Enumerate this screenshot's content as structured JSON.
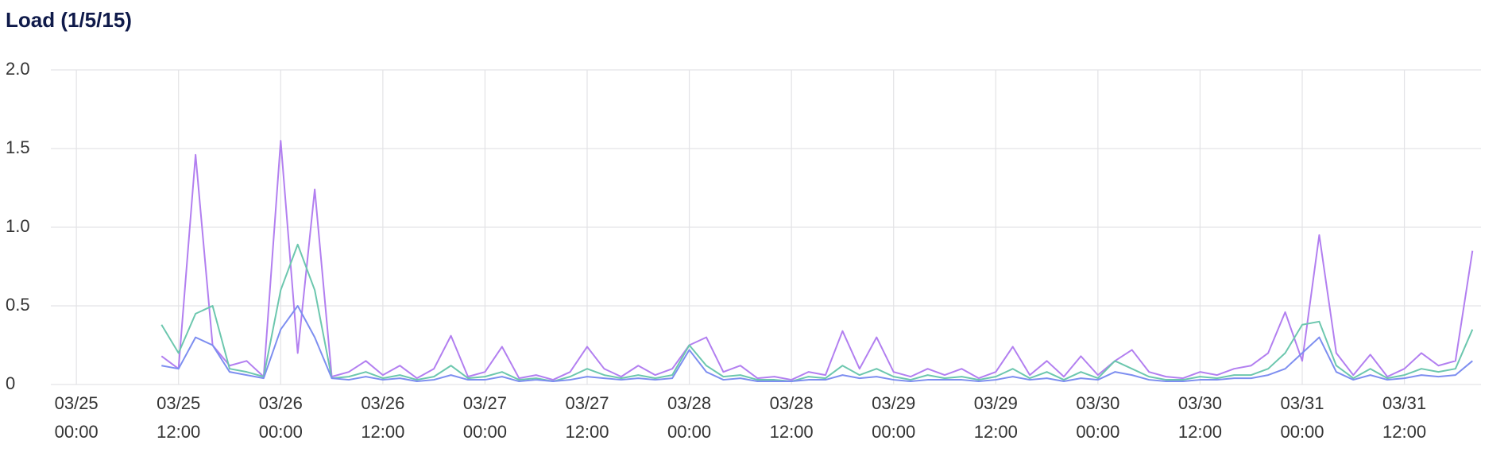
{
  "chart_data": {
    "type": "line",
    "title": "Load (1/5/15)",
    "x": [
      "03/25 10:00",
      "03/25 12:00",
      "03/25 14:00",
      "03/25 16:00",
      "03/25 18:00",
      "03/25 20:00",
      "03/25 22:00",
      "03/26 00:00",
      "03/26 02:00",
      "03/26 04:00",
      "03/26 06:00",
      "03/26 08:00",
      "03/26 10:00",
      "03/26 12:00",
      "03/26 14:00",
      "03/26 16:00",
      "03/26 18:00",
      "03/26 20:00",
      "03/26 22:00",
      "03/27 00:00",
      "03/27 02:00",
      "03/27 04:00",
      "03/27 06:00",
      "03/27 08:00",
      "03/27 10:00",
      "03/27 12:00",
      "03/27 14:00",
      "03/27 16:00",
      "03/27 18:00",
      "03/27 20:00",
      "03/27 22:00",
      "03/28 00:00",
      "03/28 02:00",
      "03/28 04:00",
      "03/28 06:00",
      "03/28 08:00",
      "03/28 10:00",
      "03/28 12:00",
      "03/28 14:00",
      "03/28 16:00",
      "03/28 18:00",
      "03/28 20:00",
      "03/28 22:00",
      "03/29 00:00",
      "03/29 02:00",
      "03/29 04:00",
      "03/29 06:00",
      "03/29 08:00",
      "03/29 10:00",
      "03/29 12:00",
      "03/29 14:00",
      "03/29 16:00",
      "03/29 18:00",
      "03/29 20:00",
      "03/29 22:00",
      "03/30 00:00",
      "03/30 02:00",
      "03/30 04:00",
      "03/30 06:00",
      "03/30 08:00",
      "03/30 10:00",
      "03/30 12:00",
      "03/30 14:00",
      "03/30 16:00",
      "03/30 18:00",
      "03/30 20:00",
      "03/30 22:00",
      "03/31 00:00",
      "03/31 02:00",
      "03/31 04:00",
      "03/31 06:00",
      "03/31 08:00",
      "03/31 10:00",
      "03/31 12:00",
      "03/31 14:00",
      "03/31 16:00",
      "03/31 18:00",
      "03/31 20:00"
    ],
    "series": [
      {
        "color": "#b27ff0",
        "values": [
          0.18,
          0.1,
          1.46,
          0.25,
          0.12,
          0.15,
          0.05,
          1.55,
          0.2,
          1.24,
          0.05,
          0.08,
          0.15,
          0.06,
          0.12,
          0.04,
          0.1,
          0.31,
          0.05,
          0.08,
          0.24,
          0.04,
          0.06,
          0.03,
          0.08,
          0.24,
          0.1,
          0.05,
          0.12,
          0.06,
          0.1,
          0.25,
          0.3,
          0.08,
          0.12,
          0.04,
          0.05,
          0.03,
          0.08,
          0.06,
          0.34,
          0.1,
          0.3,
          0.08,
          0.05,
          0.1,
          0.06,
          0.1,
          0.04,
          0.08,
          0.24,
          0.06,
          0.15,
          0.05,
          0.18,
          0.06,
          0.15,
          0.22,
          0.08,
          0.05,
          0.04,
          0.08,
          0.06,
          0.1,
          0.12,
          0.2,
          0.46,
          0.15,
          0.95,
          0.2,
          0.06,
          0.19,
          0.05,
          0.1,
          0.2,
          0.12,
          0.15,
          0.85
        ]
      },
      {
        "color": "#6cc7ae",
        "values": [
          0.38,
          0.2,
          0.45,
          0.5,
          0.1,
          0.08,
          0.05,
          0.6,
          0.89,
          0.6,
          0.04,
          0.05,
          0.08,
          0.04,
          0.06,
          0.03,
          0.05,
          0.12,
          0.04,
          0.05,
          0.08,
          0.03,
          0.04,
          0.02,
          0.05,
          0.1,
          0.06,
          0.04,
          0.06,
          0.04,
          0.06,
          0.25,
          0.12,
          0.05,
          0.06,
          0.03,
          0.03,
          0.02,
          0.05,
          0.04,
          0.12,
          0.06,
          0.1,
          0.05,
          0.03,
          0.06,
          0.04,
          0.05,
          0.03,
          0.05,
          0.1,
          0.04,
          0.08,
          0.03,
          0.08,
          0.04,
          0.15,
          0.1,
          0.05,
          0.03,
          0.03,
          0.05,
          0.04,
          0.06,
          0.06,
          0.1,
          0.2,
          0.38,
          0.4,
          0.12,
          0.04,
          0.1,
          0.04,
          0.06,
          0.1,
          0.08,
          0.1,
          0.35
        ]
      },
      {
        "color": "#7d8ef0",
        "values": [
          0.12,
          0.1,
          0.3,
          0.25,
          0.08,
          0.06,
          0.04,
          0.35,
          0.5,
          0.3,
          0.04,
          0.03,
          0.05,
          0.03,
          0.04,
          0.02,
          0.03,
          0.06,
          0.03,
          0.03,
          0.05,
          0.02,
          0.03,
          0.02,
          0.03,
          0.05,
          0.04,
          0.03,
          0.04,
          0.03,
          0.04,
          0.22,
          0.08,
          0.03,
          0.04,
          0.02,
          0.02,
          0.02,
          0.03,
          0.03,
          0.06,
          0.04,
          0.05,
          0.03,
          0.02,
          0.03,
          0.03,
          0.03,
          0.02,
          0.03,
          0.05,
          0.03,
          0.04,
          0.02,
          0.04,
          0.03,
          0.08,
          0.06,
          0.03,
          0.02,
          0.02,
          0.03,
          0.03,
          0.04,
          0.04,
          0.06,
          0.1,
          0.2,
          0.3,
          0.08,
          0.03,
          0.06,
          0.03,
          0.04,
          0.06,
          0.05,
          0.06,
          0.15
        ]
      }
    ],
    "xlim": [
      "03/24 21:00",
      "03/31 21:00"
    ],
    "xticks": [
      "03/25 00:00",
      "03/25 12:00",
      "03/26 00:00",
      "03/26 12:00",
      "03/27 00:00",
      "03/27 12:00",
      "03/28 00:00",
      "03/28 12:00",
      "03/29 00:00",
      "03/29 12:00",
      "03/30 00:00",
      "03/30 12:00",
      "03/31 00:00",
      "03/31 12:00"
    ],
    "ylim": [
      0,
      2
    ],
    "yticks": [
      0,
      0.5,
      {
        "value": 1,
        "label": "1.0"
      },
      1.5,
      {
        "value": 2,
        "label": "2.0"
      }
    ],
    "grid": true
  }
}
